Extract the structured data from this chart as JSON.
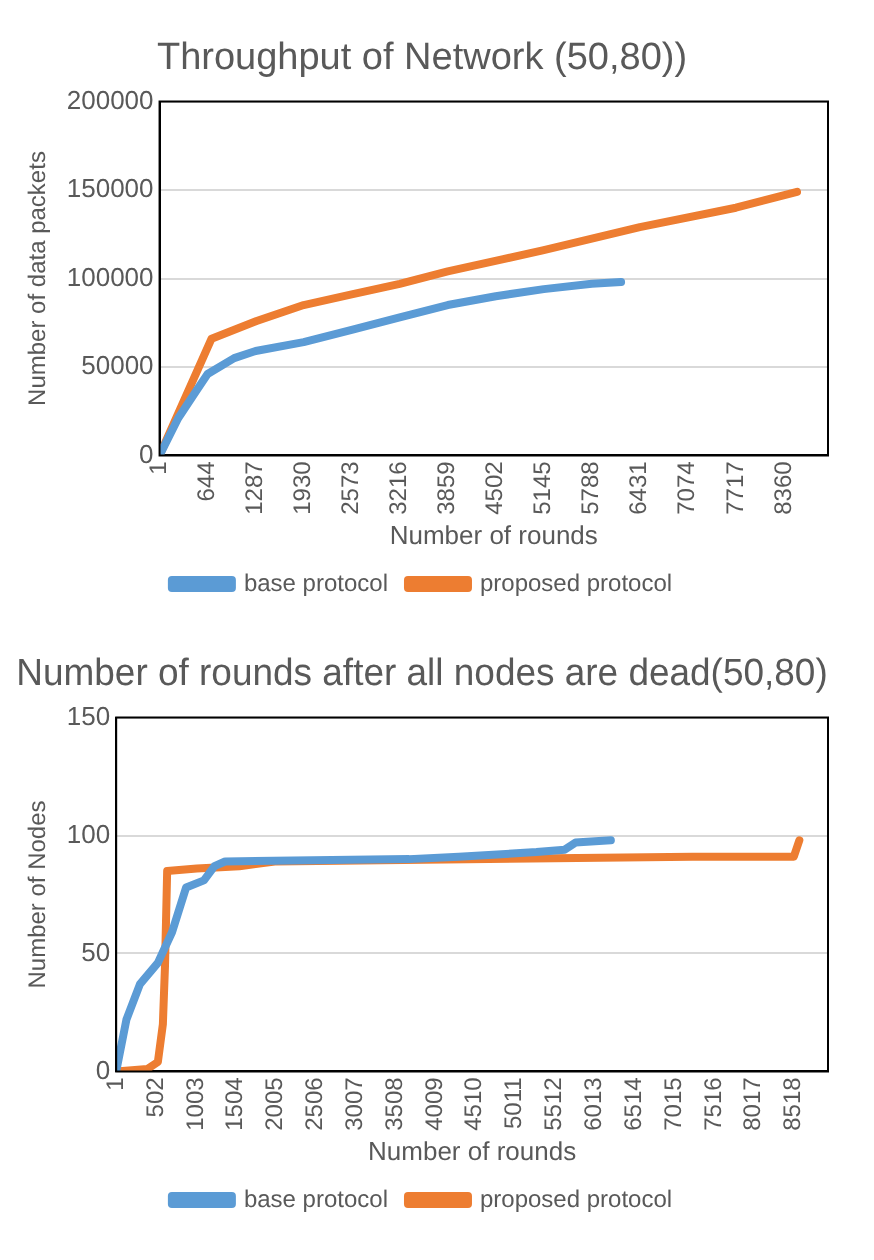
{
  "chart_data": [
    {
      "type": "line",
      "title": "Throughput of Network (50,80))",
      "xlabel": "Number of rounds",
      "ylabel": "Number of data packets",
      "xlim": [
        1,
        8950
      ],
      "xticks": [
        1,
        644,
        1287,
        1930,
        2573,
        3216,
        3859,
        4502,
        5145,
        5788,
        6431,
        7074,
        7717,
        8360
      ],
      "ylim": [
        0,
        200000
      ],
      "yticks": [
        0,
        50000,
        100000,
        150000,
        200000
      ],
      "grid": "y",
      "legend": "bottom",
      "series": [
        {
          "name": "base protocol",
          "color": "#5b9bd5",
          "x": [
            1,
            250,
            500,
            644,
            1000,
            1287,
            1930,
            2573,
            3216,
            3859,
            4502,
            5145,
            5788,
            6180
          ],
          "values": [
            0,
            21000,
            37000,
            46000,
            55000,
            59000,
            64000,
            71000,
            78000,
            85000,
            90000,
            94000,
            97000,
            98000
          ]
        },
        {
          "name": "proposed protocol",
          "color": "#ed7d31",
          "x": [
            1,
            697,
            1300,
            1930,
            2573,
            3216,
            3859,
            5145,
            6431,
            7717,
            8535
          ],
          "values": [
            0,
            66000,
            76000,
            85000,
            91000,
            97000,
            104000,
            116000,
            129000,
            140000,
            149000
          ]
        }
      ]
    },
    {
      "type": "line",
      "title": "Number of rounds after all nodes are dead(50,80)",
      "xlabel": "Number of rounds",
      "ylabel": "Number of Nodes",
      "xlim": [
        1,
        8950
      ],
      "xticks": [
        1,
        502,
        1003,
        1504,
        2005,
        2506,
        3007,
        3508,
        4009,
        4510,
        5011,
        5512,
        6013,
        6514,
        7015,
        7516,
        8017,
        8518
      ],
      "ylim": [
        0,
        150
      ],
      "yticks": [
        0,
        50,
        100,
        150
      ],
      "grid": "y",
      "legend": "bottom",
      "series": [
        {
          "name": "base protocol",
          "color": "#5b9bd5",
          "x": [
            1,
            130,
            300,
            525,
            703,
            880,
            1104,
            1237,
            1370,
            3685,
            4308,
            5285,
            5640,
            5775,
            6220
          ],
          "values": [
            0,
            22,
            37,
            46,
            59,
            78,
            81,
            87,
            89,
            90,
            91,
            93,
            94,
            97,
            98
          ]
        },
        {
          "name": "proposed protocol",
          "color": "#ed7d31",
          "x": [
            1,
            392,
            525,
            588,
            615,
            642,
            1015,
            1550,
            1994,
            7245,
            8520,
            8590
          ],
          "values": [
            0,
            1,
            4,
            20,
            45,
            85,
            86,
            87,
            89,
            91,
            91,
            98
          ]
        }
      ]
    }
  ]
}
